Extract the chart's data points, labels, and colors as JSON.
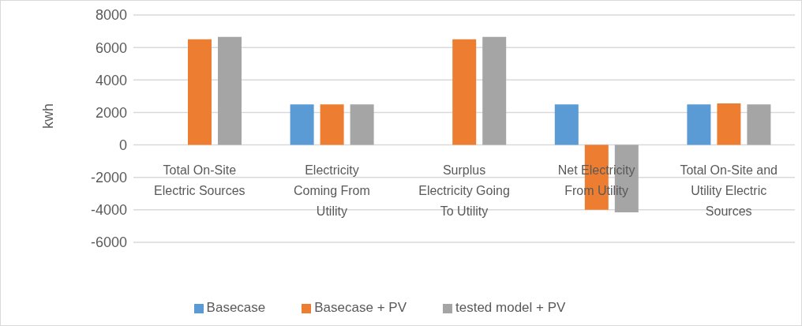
{
  "chart_data": {
    "type": "bar",
    "ylabel": "kwh",
    "categories": [
      "Total On-Site Electric Sources",
      "Electricity Coming From Utility",
      "Surplus Electricity Going To Utility",
      "Net Electricity From Utility",
      "Total On-Site and Utility Electric Sources"
    ],
    "series": [
      {
        "name": "Basecase",
        "color": "#5b9bd5",
        "values": [
          0,
          2500,
          0,
          2500,
          2500
        ]
      },
      {
        "name": "Basecase + PV",
        "color": "#ed7d31",
        "values": [
          6500,
          2500,
          6500,
          -4000,
          2550
        ]
      },
      {
        "name": "tested model + PV",
        "color": "#a5a5a5",
        "values": [
          6650,
          2500,
          6650,
          -4150,
          2500
        ]
      }
    ],
    "ylim": [
      -6000,
      8000
    ],
    "yticks": [
      -6000,
      -4000,
      -2000,
      0,
      2000,
      4000,
      6000,
      8000
    ],
    "grid": "y",
    "legend": "bottom"
  }
}
